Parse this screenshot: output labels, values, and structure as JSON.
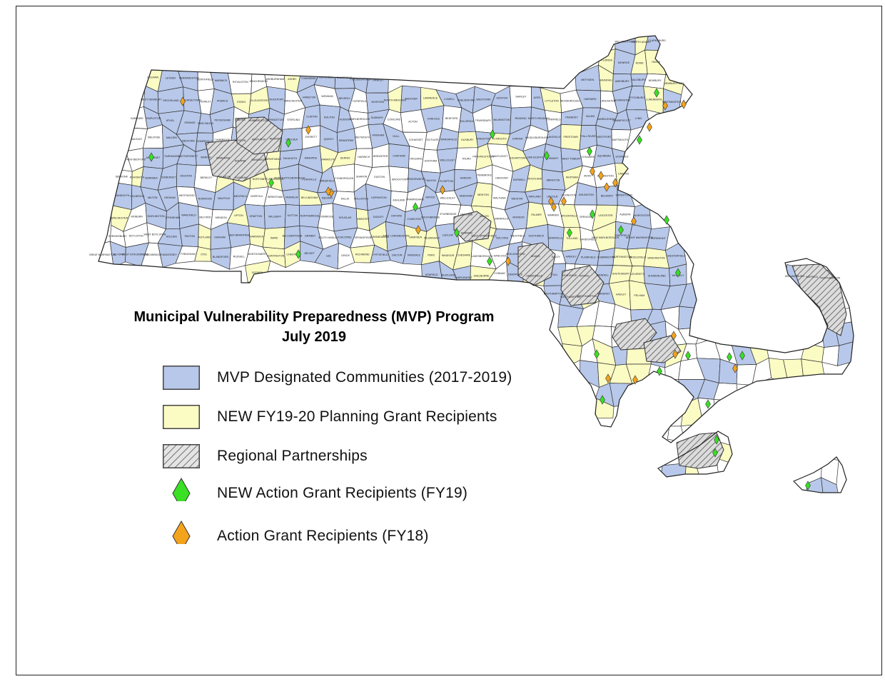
{
  "title": {
    "line1": "Municipal Vulnerability Preparedness (MVP) Program",
    "line2": "July 2019"
  },
  "legend": [
    {
      "label": "MVP Designated Communities (2017-2019)",
      "symbol": "blue-fill",
      "color": "#b8c8ea"
    },
    {
      "label": "NEW FY19-20 Planning Grant Recipients",
      "symbol": "yellow-fill",
      "color": "#fbfbc4"
    },
    {
      "label": "Regional Partnerships",
      "symbol": "hatch",
      "color": "#999999"
    },
    {
      "label": "NEW Action Grant Recipients (FY19)",
      "symbol": "green-diamond",
      "color": "#39e023"
    },
    {
      "label": "Action Grant Recipients (FY18)",
      "symbol": "orange-diamond",
      "color": "#f3a31c"
    }
  ],
  "colors": {
    "mvp": "#b8c8ea",
    "planning": "#fbfbc4",
    "none": "#ffffff",
    "border": "#333333",
    "green": "#39e023",
    "orange": "#f3a31c"
  },
  "town_labels": [
    "WILLIAMSTOWN",
    "NORTH ADAMS",
    "CLARKSBURG",
    "FLORIDA",
    "MONROE",
    "ROWE",
    "HEATH",
    "COLRAIN",
    "LEYDEN",
    "BERNARDSTON",
    "NORTHFIELD",
    "WARWICK",
    "ROYALSTON",
    "WINCHENDON",
    "ASHBURNHAM",
    "ASHBY",
    "TOWNSEND",
    "PEPPERELL",
    "DUNSTABLE",
    "TYNGSBOROUGH",
    "DRACUT",
    "METHUEN",
    "HAVERHILL",
    "AMESBURY",
    "SALISBURY",
    "NEWBURY",
    "NEWBURYPORT",
    "WEST NEWBURY",
    "GROVELAND",
    "GEORGETOWN",
    "ROWLEY",
    "IPSWICH",
    "ESSEX",
    "GLOUCESTER",
    "ROCKPORT",
    "MANCHESTER",
    "HAMILTON",
    "WENHAM",
    "BEVERLY",
    "TOPSFIELD",
    "BOXFORD",
    "NORTH ANDOVER",
    "ANDOVER",
    "LAWRENCE",
    "LOWELL",
    "CHELMSFORD",
    "WESTFORD",
    "GROTON",
    "SHIRLEY",
    "AYER",
    "LITTLETON",
    "BOXBOROUGH",
    "HARVARD",
    "LANCASTER",
    "LEOMINSTER",
    "FITCHBURG",
    "LUNENBURG",
    "WESTMINSTER",
    "GARDNER",
    "TEMPLETON",
    "ATHOL",
    "ORANGE",
    "NEW SALEM",
    "PETERSHAM",
    "BARRE",
    "HUBBARDSTON",
    "PRINCETON",
    "STERLING",
    "CLINTON",
    "BOLTON",
    "HUDSON",
    "MARLBOROUGH",
    "SUDBURY",
    "CONCORD",
    "ACTON",
    "CARLISLE",
    "BEDFORD",
    "BILLERICA",
    "TEWKSBURY",
    "WILMINGTON",
    "READING",
    "NORTH READING",
    "LYNNFIELD",
    "PEABODY",
    "SALEM",
    "MARBLEHEAD",
    "SWAMPSCOTT",
    "LYNN",
    "SAUGUS",
    "MELROSE",
    "MALDEN",
    "MEDFORD",
    "SOMERVILLE",
    "CAMBRIDGE",
    "BOSTON",
    "WINTHROP",
    "REVERE",
    "CHELSEA",
    "EVERETT",
    "QUINCY",
    "BRAINTREE",
    "WEYMOUTH",
    "HINGHAM",
    "HULL",
    "COHASSET",
    "SCITUATE",
    "MARSHFIELD",
    "DUXBURY",
    "KINGSTON",
    "PLYMOUTH",
    "CARVER",
    "MIDDLEBOROUGH",
    "LAKEVILLE",
    "FREETOWN",
    "FALL RIVER",
    "WESTPORT",
    "DARTMOUTH",
    "NEW BEDFORD",
    "ACUSHNET",
    "FAIRHAVEN",
    "MATTAPOISETT",
    "MARION",
    "WAREHAM",
    "BOURNE",
    "SANDWICH",
    "BARNSTABLE",
    "FALMOUTH",
    "MASHPEE",
    "YARMOUTH",
    "DENNIS",
    "HARWICH",
    "BREWSTER",
    "CHATHAM",
    "ORLEANS",
    "EASTHAM",
    "WELLFLEET",
    "TRURO",
    "PROVINCETOWN",
    "NANTUCKET",
    "EDGARTOWN",
    "OAK BLUFFS",
    "TISBURY",
    "WEST TISBURY",
    "CHILMARK",
    "AQUINNAH",
    "GOSNOLD",
    "SEEKONK",
    "REHOBOTH",
    "SWANSEA",
    "SOMERSET",
    "DIGHTON",
    "BERKLEY",
    "TAUNTON",
    "RAYNHAM",
    "NORTON",
    "ATTLEBOROUGH",
    "NORTH ATTLEBOROUGH",
    "PLAINVILLE",
    "MANSFIELD",
    "FOXBOROUGH",
    "SHARON",
    "EASTON",
    "BROCKTON",
    "BRIDGEWATER",
    "HALIFAX",
    "PLYMPTON",
    "HANSON",
    "PEMBROKE",
    "HANOVER",
    "NORWELL",
    "ROCKLAND",
    "ABINGTON",
    "WHITMAN",
    "AVON",
    "STOUGHTON",
    "CANTON",
    "RANDOLPH",
    "HOLBROOK",
    "MILTON",
    "DEDHAM",
    "WESTWOOD",
    "NORWOOD",
    "WALPOLE",
    "MEDFIELD",
    "NORFOLK",
    "WRENTHAM",
    "FRANKLIN",
    "BELLINGHAM",
    "MEDWAY",
    "MILLIS",
    "HOLLISTON",
    "HOPKINTON",
    "ASHLAND",
    "FRAMINGHAM",
    "NATICK",
    "WELLESLEY",
    "NEEDHAM",
    "NEWTON",
    "WALTHAM",
    "WESTON",
    "WAYLAND",
    "LINCOLN",
    "LEXINGTON",
    "ARLINGTON",
    "BELMONT",
    "WATERTOWN",
    "WINCHESTER",
    "WOBURN",
    "BURLINGTON",
    "STONEHAM",
    "WAKEFIELD",
    "MILFORD",
    "MENDON",
    "UPTON",
    "GRAFTON",
    "MILLBURY",
    "SUTTON",
    "NORTHBRIDGE",
    "UXBRIDGE",
    "DOUGLAS",
    "WEBSTER",
    "DUDLEY",
    "OXFORD",
    "CHARLTON",
    "SOUTHBRIDGE",
    "STURBRIDGE",
    "HOLLAND",
    "WALES",
    "BRIMFIELD",
    "MONSON",
    "PALMER",
    "WARREN",
    "BROOKFIELD",
    "SPENCER",
    "LEICESTER",
    "AUBURN",
    "WORCESTER",
    "SHREWSBURY",
    "BOYLSTON",
    "WEST BOYLSTON",
    "HOLDEN",
    "PAXTON",
    "RUTLAND",
    "OAKHAM",
    "NEW BRAINTREE",
    "HARDWICK",
    "WARE",
    "BELCHERTOWN",
    "GRANBY",
    "SOUTH HADLEY",
    "CHICOPEE",
    "SPRINGFIELD",
    "LONGMEADOW",
    "EAST LONGMEADOW",
    "HAMPDEN",
    "WILBRAHAM",
    "LUDLOW",
    "AGAWAM",
    "WEST SPRINGFIELD",
    "HOLYOKE",
    "WESTFIELD",
    "SOUTHWICK",
    "GRANVILLE",
    "TOLLAND",
    "SANDISFIELD",
    "NEW MARLBOROUGH",
    "SHEFFIELD",
    "MOUNT WASHINGTON",
    "EGREMONT",
    "GREAT BARRINGTON",
    "ALFORD",
    "WEST STOCKBRIDGE",
    "STOCKBRIDGE",
    "MONTEREY",
    "TYRINGHAM",
    "OTIS",
    "BLANDFORD",
    "RUSSELL",
    "MONTGOMERY",
    "HUNTINGTON",
    "CHESTER",
    "BECKET",
    "LEE",
    "LENOX",
    "RICHMOND",
    "PITTSFIELD",
    "DALTON",
    "HINSDALE",
    "PERU",
    "WINDSOR",
    "CHESHIRE",
    "LANESBOROUGH",
    "HANCOCK",
    "NEW ASHFORD",
    "ADAMS",
    "SAVOY",
    "HAWLEY",
    "PLAINFIELD",
    "CUMMINGTON",
    "WORTHINGTON",
    "MIDDLEFIELD",
    "WASHINGTON",
    "CHESTERFIELD",
    "GOSHEN",
    "ASHFIELD",
    "BUCKLAND",
    "CHARLEMONT",
    "SHELBURNE",
    "CONWAY",
    "DEERFIELD",
    "GREENFIELD",
    "GILL",
    "MONTAGUE",
    "ERVING",
    "WENDELL",
    "SHUTESBURY",
    "LEVERETT",
    "SUNDERLAND",
    "WHATELY",
    "WILLIAMSBURG",
    "HATFIELD",
    "NORTHAMPTON",
    "EASTHAMPTON",
    "SOUTHAMPTON",
    "WESTHAMPTON",
    "AMHERST",
    "HADLEY",
    "PELHAM"
  ]
}
